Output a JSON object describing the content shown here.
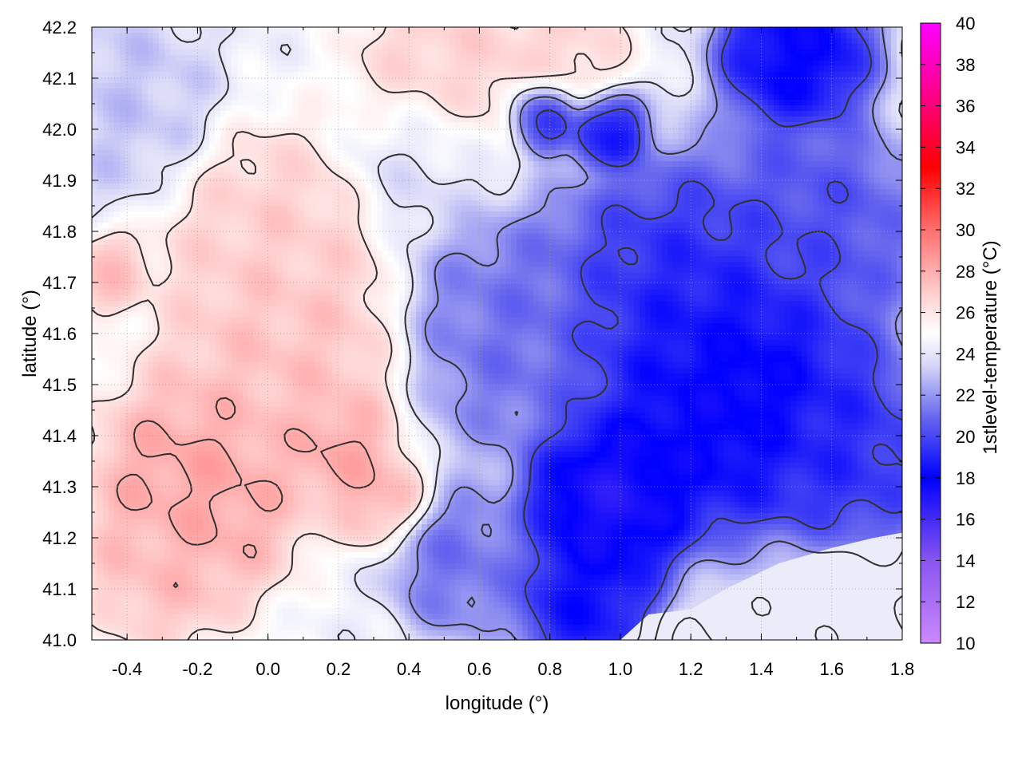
{
  "chart_data": {
    "type": "heatmap",
    "title": "",
    "xlabel": "longitude (°)",
    "ylabel": "latitude (°)",
    "colorbar_label": "1stlevel-temperature (°C)",
    "xlim": [
      -0.5,
      1.8
    ],
    "ylim": [
      41.0,
      42.2
    ],
    "xticks": [
      -0.4,
      -0.2,
      0.0,
      0.2,
      0.4,
      0.6,
      0.8,
      1.0,
      1.2,
      1.4,
      1.6,
      1.8
    ],
    "xtick_labels": [
      "-0.4",
      "-0.2",
      "0.0",
      "0.2",
      "0.4",
      "0.6",
      "0.8",
      "1.0",
      "1.2",
      "1.4",
      "1.6",
      "1.8"
    ],
    "yticks": [
      41.0,
      41.1,
      41.2,
      41.3,
      41.4,
      41.5,
      41.6,
      41.7,
      41.8,
      41.9,
      42.0,
      42.1,
      42.2
    ],
    "ytick_labels": [
      "41.0",
      "41.1",
      "41.2",
      "41.3",
      "41.4",
      "41.5",
      "41.6",
      "41.7",
      "41.8",
      "41.9",
      "42.0",
      "42.1",
      "42.2"
    ],
    "colorbar_range": [
      10,
      40
    ],
    "colorbar_ticks": [
      10,
      12,
      14,
      16,
      18,
      20,
      22,
      24,
      26,
      28,
      30,
      32,
      34,
      36,
      38,
      40
    ],
    "colorbar_tick_labels": [
      "10",
      "12",
      "14",
      "16",
      "18",
      "20",
      "22",
      "24",
      "26",
      "28",
      "30",
      "32",
      "34",
      "36",
      "38",
      "40"
    ],
    "colormap_stops": [
      {
        "value": 10,
        "color": "#cc88ff"
      },
      {
        "value": 14,
        "color": "#8855ee"
      },
      {
        "value": 18,
        "color": "#0000ff"
      },
      {
        "value": 21,
        "color": "#6a6aee"
      },
      {
        "value": 23.5,
        "color": "#d8d8f8"
      },
      {
        "value": 25,
        "color": "#ffffff"
      },
      {
        "value": 27,
        "color": "#ffcccc"
      },
      {
        "value": 30,
        "color": "#ff6f6f"
      },
      {
        "value": 33,
        "color": "#ff0000"
      },
      {
        "value": 36,
        "color": "#ff0077"
      },
      {
        "value": 40,
        "color": "#ff00ff"
      }
    ],
    "grid": true,
    "contours": true,
    "contour_color": "#303030",
    "field_regions": [
      {
        "lon": -0.2,
        "lat": 41.3,
        "t": 28.5,
        "spread": 0.14
      },
      {
        "lon": 0.05,
        "lat": 41.55,
        "t": 27.5,
        "spread": 0.16
      },
      {
        "lon": -0.3,
        "lat": 41.15,
        "t": 27.5,
        "spread": 0.1
      },
      {
        "lon": 0.0,
        "lat": 41.78,
        "t": 27.0,
        "spread": 0.14
      },
      {
        "lon": 0.2,
        "lat": 41.38,
        "t": 28.5,
        "spread": 0.07
      },
      {
        "lon": 0.32,
        "lat": 41.28,
        "t": 28.0,
        "spread": 0.06
      },
      {
        "lon": 0.5,
        "lat": 42.1,
        "t": 27.0,
        "spread": 0.12
      },
      {
        "lon": 0.8,
        "lat": 42.15,
        "t": 26.8,
        "spread": 0.1
      },
      {
        "lon": -0.45,
        "lat": 41.72,
        "t": 27.5,
        "spread": 0.05
      },
      {
        "lon": 1.3,
        "lat": 41.5,
        "t": 17.0,
        "spread": 0.18
      },
      {
        "lon": 0.97,
        "lat": 41.28,
        "t": 16.5,
        "spread": 0.11
      },
      {
        "lon": 1.15,
        "lat": 41.65,
        "t": 19.0,
        "spread": 0.18
      },
      {
        "lon": 1.5,
        "lat": 42.15,
        "t": 17.5,
        "spread": 0.1
      },
      {
        "lon": 0.9,
        "lat": 41.08,
        "t": 18.0,
        "spread": 0.09
      },
      {
        "lon": 0.78,
        "lat": 42.03,
        "t": 17.5,
        "spread": 0.05
      },
      {
        "lon": 0.96,
        "lat": 42.0,
        "t": 18.0,
        "spread": 0.05
      },
      {
        "lon": 0.7,
        "lat": 41.6,
        "t": 21.0,
        "spread": 0.15
      },
      {
        "lon": 1.6,
        "lat": 41.35,
        "t": 19.0,
        "spread": 0.14
      },
      {
        "lon": 0.55,
        "lat": 41.15,
        "t": 21.0,
        "spread": 0.09
      },
      {
        "lon": 1.55,
        "lat": 41.8,
        "t": 20.0,
        "spread": 0.14
      },
      {
        "lon": 1.55,
        "lat": 41.05,
        "t": 23.5,
        "spread": 0.12
      },
      {
        "lon": 0.45,
        "lat": 41.95,
        "t": 23.5,
        "spread": 0.1
      },
      {
        "lon": -0.4,
        "lat": 42.05,
        "t": 23.0,
        "spread": 0.12
      }
    ]
  }
}
